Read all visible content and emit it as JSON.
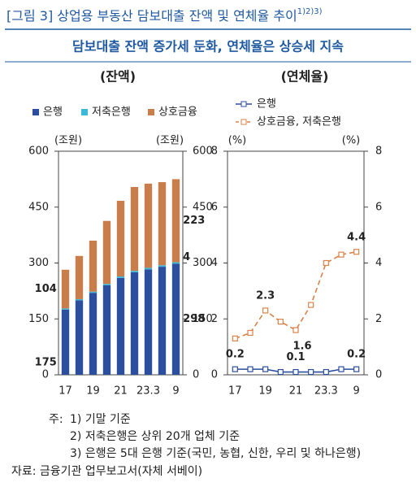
{
  "header": {
    "title": "[그림 3] 상업용 부동산 담보대출 잔액 및 연체율 추이",
    "title_note": "1)2)3)",
    "subtitle": "담보대출 잔액 증가세 둔화, 연체율은 상승세 지속"
  },
  "chart_data": [
    {
      "type": "bar",
      "stacked": true,
      "title": "(잔액)",
      "y_unit": "(조원)",
      "y2_unit": "(조원)",
      "categories": [
        "17",
        null,
        "19",
        null,
        "21",
        null,
        "23.3",
        null,
        "9"
      ],
      "series": [
        {
          "name": "은행",
          "color": "#2b4f9e",
          "values": [
            175,
            200,
            220,
            240,
            260,
            275,
            283,
            290,
            298
          ],
          "value_labels": [
            "175",
            null,
            null,
            null,
            null,
            null,
            null,
            null,
            "298"
          ]
        },
        {
          "name": "저축은행",
          "color": "#3bb8d8",
          "values": [
            3,
            3,
            3,
            4,
            4,
            4,
            4,
            4,
            4
          ],
          "value_labels": [
            null,
            null,
            null,
            null,
            null,
            null,
            null,
            null,
            "4"
          ]
        },
        {
          "name": "상호금융",
          "color": "#c97d4a",
          "values": [
            104,
            116,
            137,
            169,
            203,
            225,
            226,
            223,
            223
          ],
          "value_labels": [
            "104",
            null,
            null,
            null,
            null,
            null,
            null,
            null,
            "223"
          ]
        }
      ],
      "ylim": [
        0,
        600
      ],
      "yticks": [
        0,
        150,
        300,
        450,
        600
      ],
      "y2lim": [
        0,
        600
      ],
      "y2ticks": [
        0,
        150,
        300,
        450,
        600
      ]
    },
    {
      "type": "line",
      "title": "(연체율)",
      "y_unit": "(%)",
      "y2_unit": "(%)",
      "categories": [
        "17",
        null,
        "19",
        null,
        "21",
        null,
        "23.3",
        null,
        "9"
      ],
      "series": [
        {
          "name": "은행",
          "color": "#2b4f9e",
          "dashed": false,
          "marker": "square",
          "values": [
            0.2,
            0.2,
            0.2,
            0.1,
            0.1,
            0.1,
            0.1,
            0.2,
            0.2
          ],
          "value_labels": [
            "0.2",
            null,
            null,
            null,
            "0.1",
            null,
            null,
            null,
            "0.2"
          ]
        },
        {
          "name": "상호금융, 저축은행",
          "color": "#d9824a",
          "dashed": true,
          "marker": "square",
          "values": [
            1.3,
            1.5,
            2.3,
            1.9,
            1.6,
            2.5,
            4.0,
            4.3,
            4.4
          ],
          "value_labels": [
            null,
            null,
            "2.3",
            null,
            "1.6",
            null,
            null,
            null,
            "4.4"
          ]
        }
      ],
      "ylim": [
        0,
        8
      ],
      "yticks": [
        0,
        2,
        4,
        6,
        8
      ],
      "y2lim": [
        0,
        8
      ],
      "y2ticks": [
        0,
        2,
        4,
        6,
        8
      ]
    }
  ],
  "notes": {
    "label": "주:",
    "items": [
      "1) 기말 기준",
      "2) 저축은행은 상위 20개 업체 기준",
      "3) 은행은 5대 은행 기준(국민, 농협, 신한, 우리 및 하나은행)"
    ],
    "source": "자료: 금융기관 업무보고서(자체 서베이)"
  }
}
